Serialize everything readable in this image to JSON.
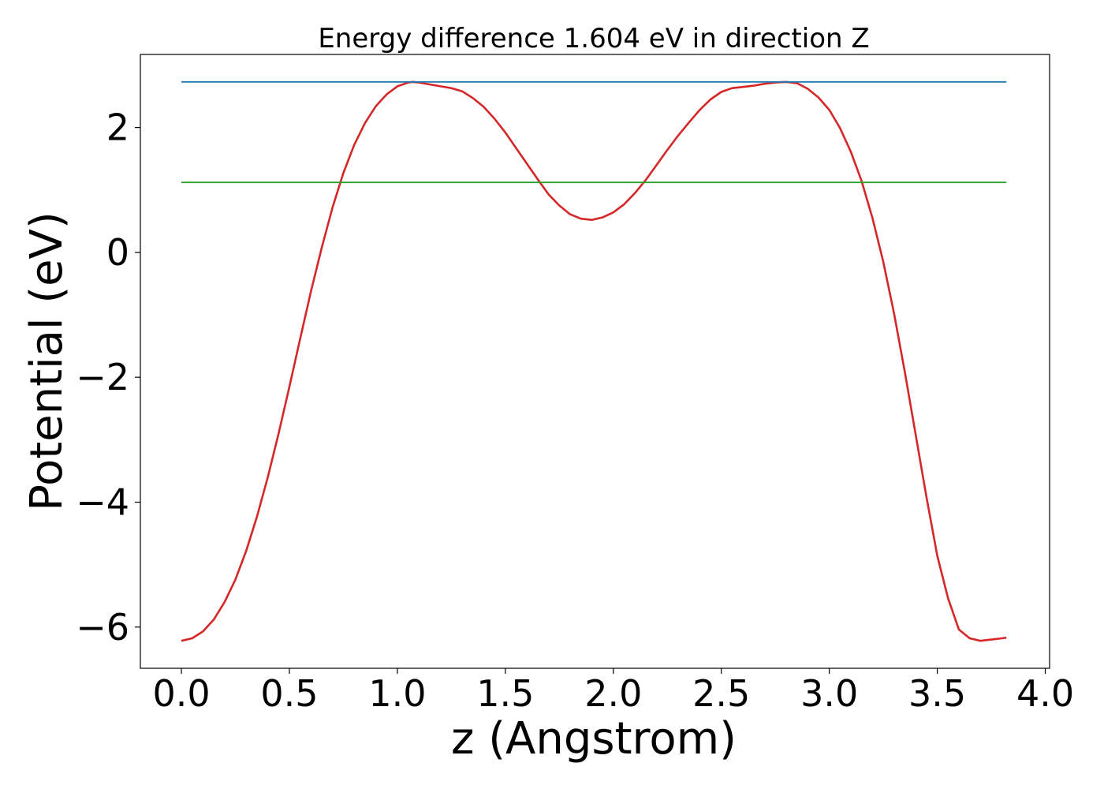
{
  "chart_data": {
    "type": "line",
    "title": "Energy difference 1.604 eV in direction Z",
    "xlabel": "z (Angstrom)",
    "ylabel": "Potential (eV)",
    "xlim": [
      -0.19,
      4.02
    ],
    "ylim": [
      -6.66,
      3.17
    ],
    "xticks": [
      0.0,
      0.5,
      1.0,
      1.5,
      2.0,
      2.5,
      3.0,
      3.5,
      4.0
    ],
    "xtick_labels": [
      "0.0",
      "0.5",
      "1.0",
      "1.5",
      "2.0",
      "2.5",
      "3.0",
      "3.5",
      "4.0"
    ],
    "yticks": [
      -6,
      -4,
      -2,
      0,
      2
    ],
    "ytick_labels": [
      "−6",
      "−4",
      "−2",
      "0",
      "2"
    ],
    "grid": false,
    "series": [
      {
        "color": "#d62728",
        "x": [
          0.0,
          0.05,
          0.1,
          0.15,
          0.2,
          0.25,
          0.3,
          0.35,
          0.4,
          0.45,
          0.5,
          0.55,
          0.6,
          0.65,
          0.7,
          0.75,
          0.8,
          0.85,
          0.9,
          0.95,
          1.0,
          1.05,
          1.07,
          1.1,
          1.15,
          1.2,
          1.25,
          1.3,
          1.35,
          1.4,
          1.45,
          1.5,
          1.55,
          1.6,
          1.65,
          1.7,
          1.75,
          1.8,
          1.85,
          1.9,
          1.95,
          2.0,
          2.05,
          2.1,
          2.15,
          2.2,
          2.25,
          2.3,
          2.35,
          2.4,
          2.45,
          2.5,
          2.55,
          2.6,
          2.65,
          2.7,
          2.75,
          2.8,
          2.85,
          2.9,
          2.95,
          3.0,
          3.05,
          3.1,
          3.15,
          3.2,
          3.25,
          3.3,
          3.35,
          3.4,
          3.45,
          3.5,
          3.55,
          3.6,
          3.65,
          3.7,
          3.75,
          3.8,
          3.82
        ],
        "y": [
          -6.22,
          -6.18,
          -6.07,
          -5.88,
          -5.6,
          -5.24,
          -4.78,
          -4.23,
          -3.6,
          -2.9,
          -2.15,
          -1.38,
          -0.62,
          0.08,
          0.72,
          1.27,
          1.72,
          2.07,
          2.34,
          2.53,
          2.66,
          2.72,
          2.73,
          2.72,
          2.69,
          2.66,
          2.63,
          2.58,
          2.47,
          2.33,
          2.14,
          1.92,
          1.67,
          1.42,
          1.17,
          0.93,
          0.75,
          0.61,
          0.54,
          0.52,
          0.56,
          0.64,
          0.77,
          0.95,
          1.16,
          1.4,
          1.64,
          1.87,
          2.08,
          2.28,
          2.45,
          2.57,
          2.63,
          2.65,
          2.67,
          2.7,
          2.72,
          2.73,
          2.71,
          2.62,
          2.48,
          2.28,
          1.99,
          1.61,
          1.14,
          0.55,
          -0.15,
          -0.98,
          -1.92,
          -2.92,
          -3.92,
          -4.86,
          -5.54,
          -6.04,
          -6.18,
          -6.22,
          -6.2,
          -6.18,
          -6.17
        ]
      },
      {
        "color": "#1f77b4",
        "x": [
          0.0,
          3.82
        ],
        "y": [
          2.73,
          2.73
        ]
      },
      {
        "color": "#2ca02c",
        "x": [
          0.0,
          3.82
        ],
        "y": [
          1.12,
          1.12
        ]
      }
    ]
  }
}
